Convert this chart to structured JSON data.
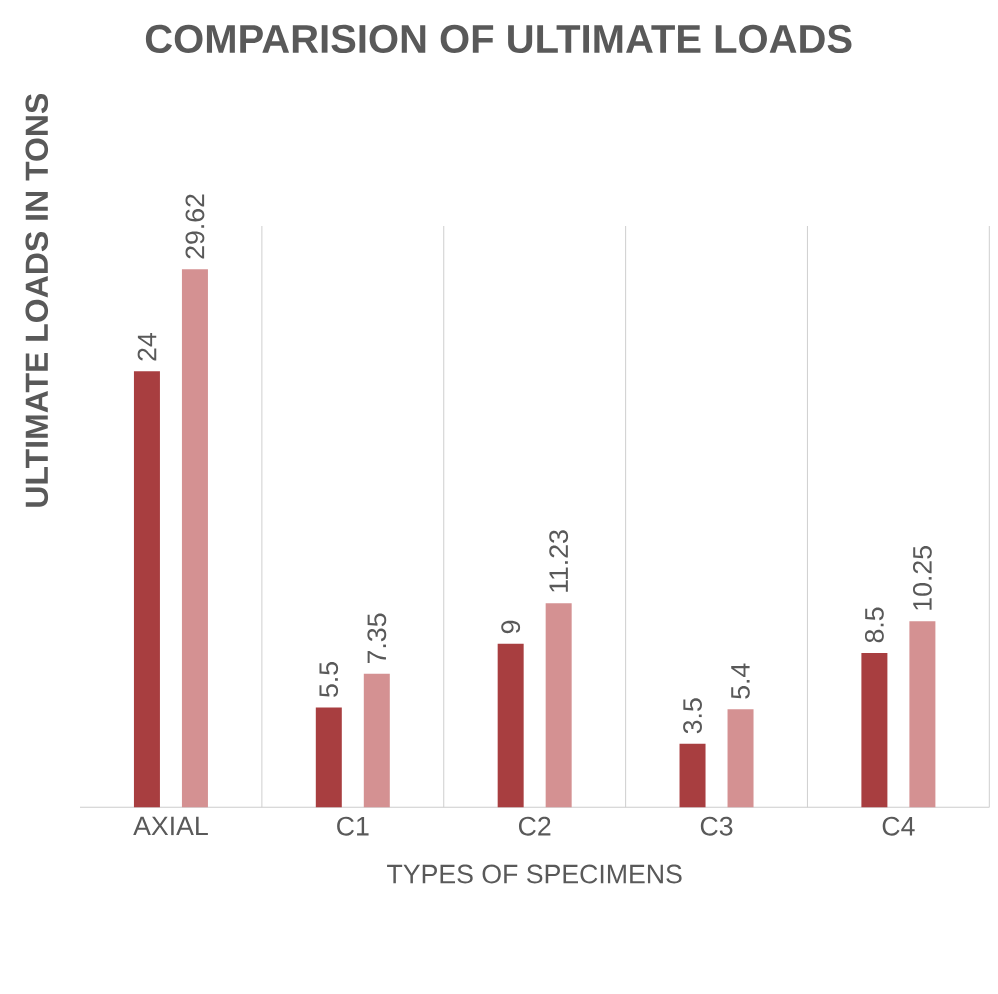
{
  "chart_data": {
    "type": "bar",
    "title": "COMPARISION OF ULTIMATE LOADS",
    "xlabel": "TYPES OF SPECIMENS",
    "ylabel": "ULTIMATE LOADS IN TONS",
    "categories": [
      "AXIAL",
      "C1",
      "C2",
      "C3",
      "C4"
    ],
    "series": [
      {
        "color": "#a83e40",
        "values": [
          24,
          5.5,
          9,
          3.5,
          8.5
        ]
      },
      {
        "color": "#d49192",
        "values": [
          29.62,
          7.35,
          11.23,
          5.4,
          10.25
        ]
      }
    ],
    "ylim": [
      0,
      32
    ],
    "grid": "x",
    "tick_labels": "x",
    "data_labels": true
  }
}
